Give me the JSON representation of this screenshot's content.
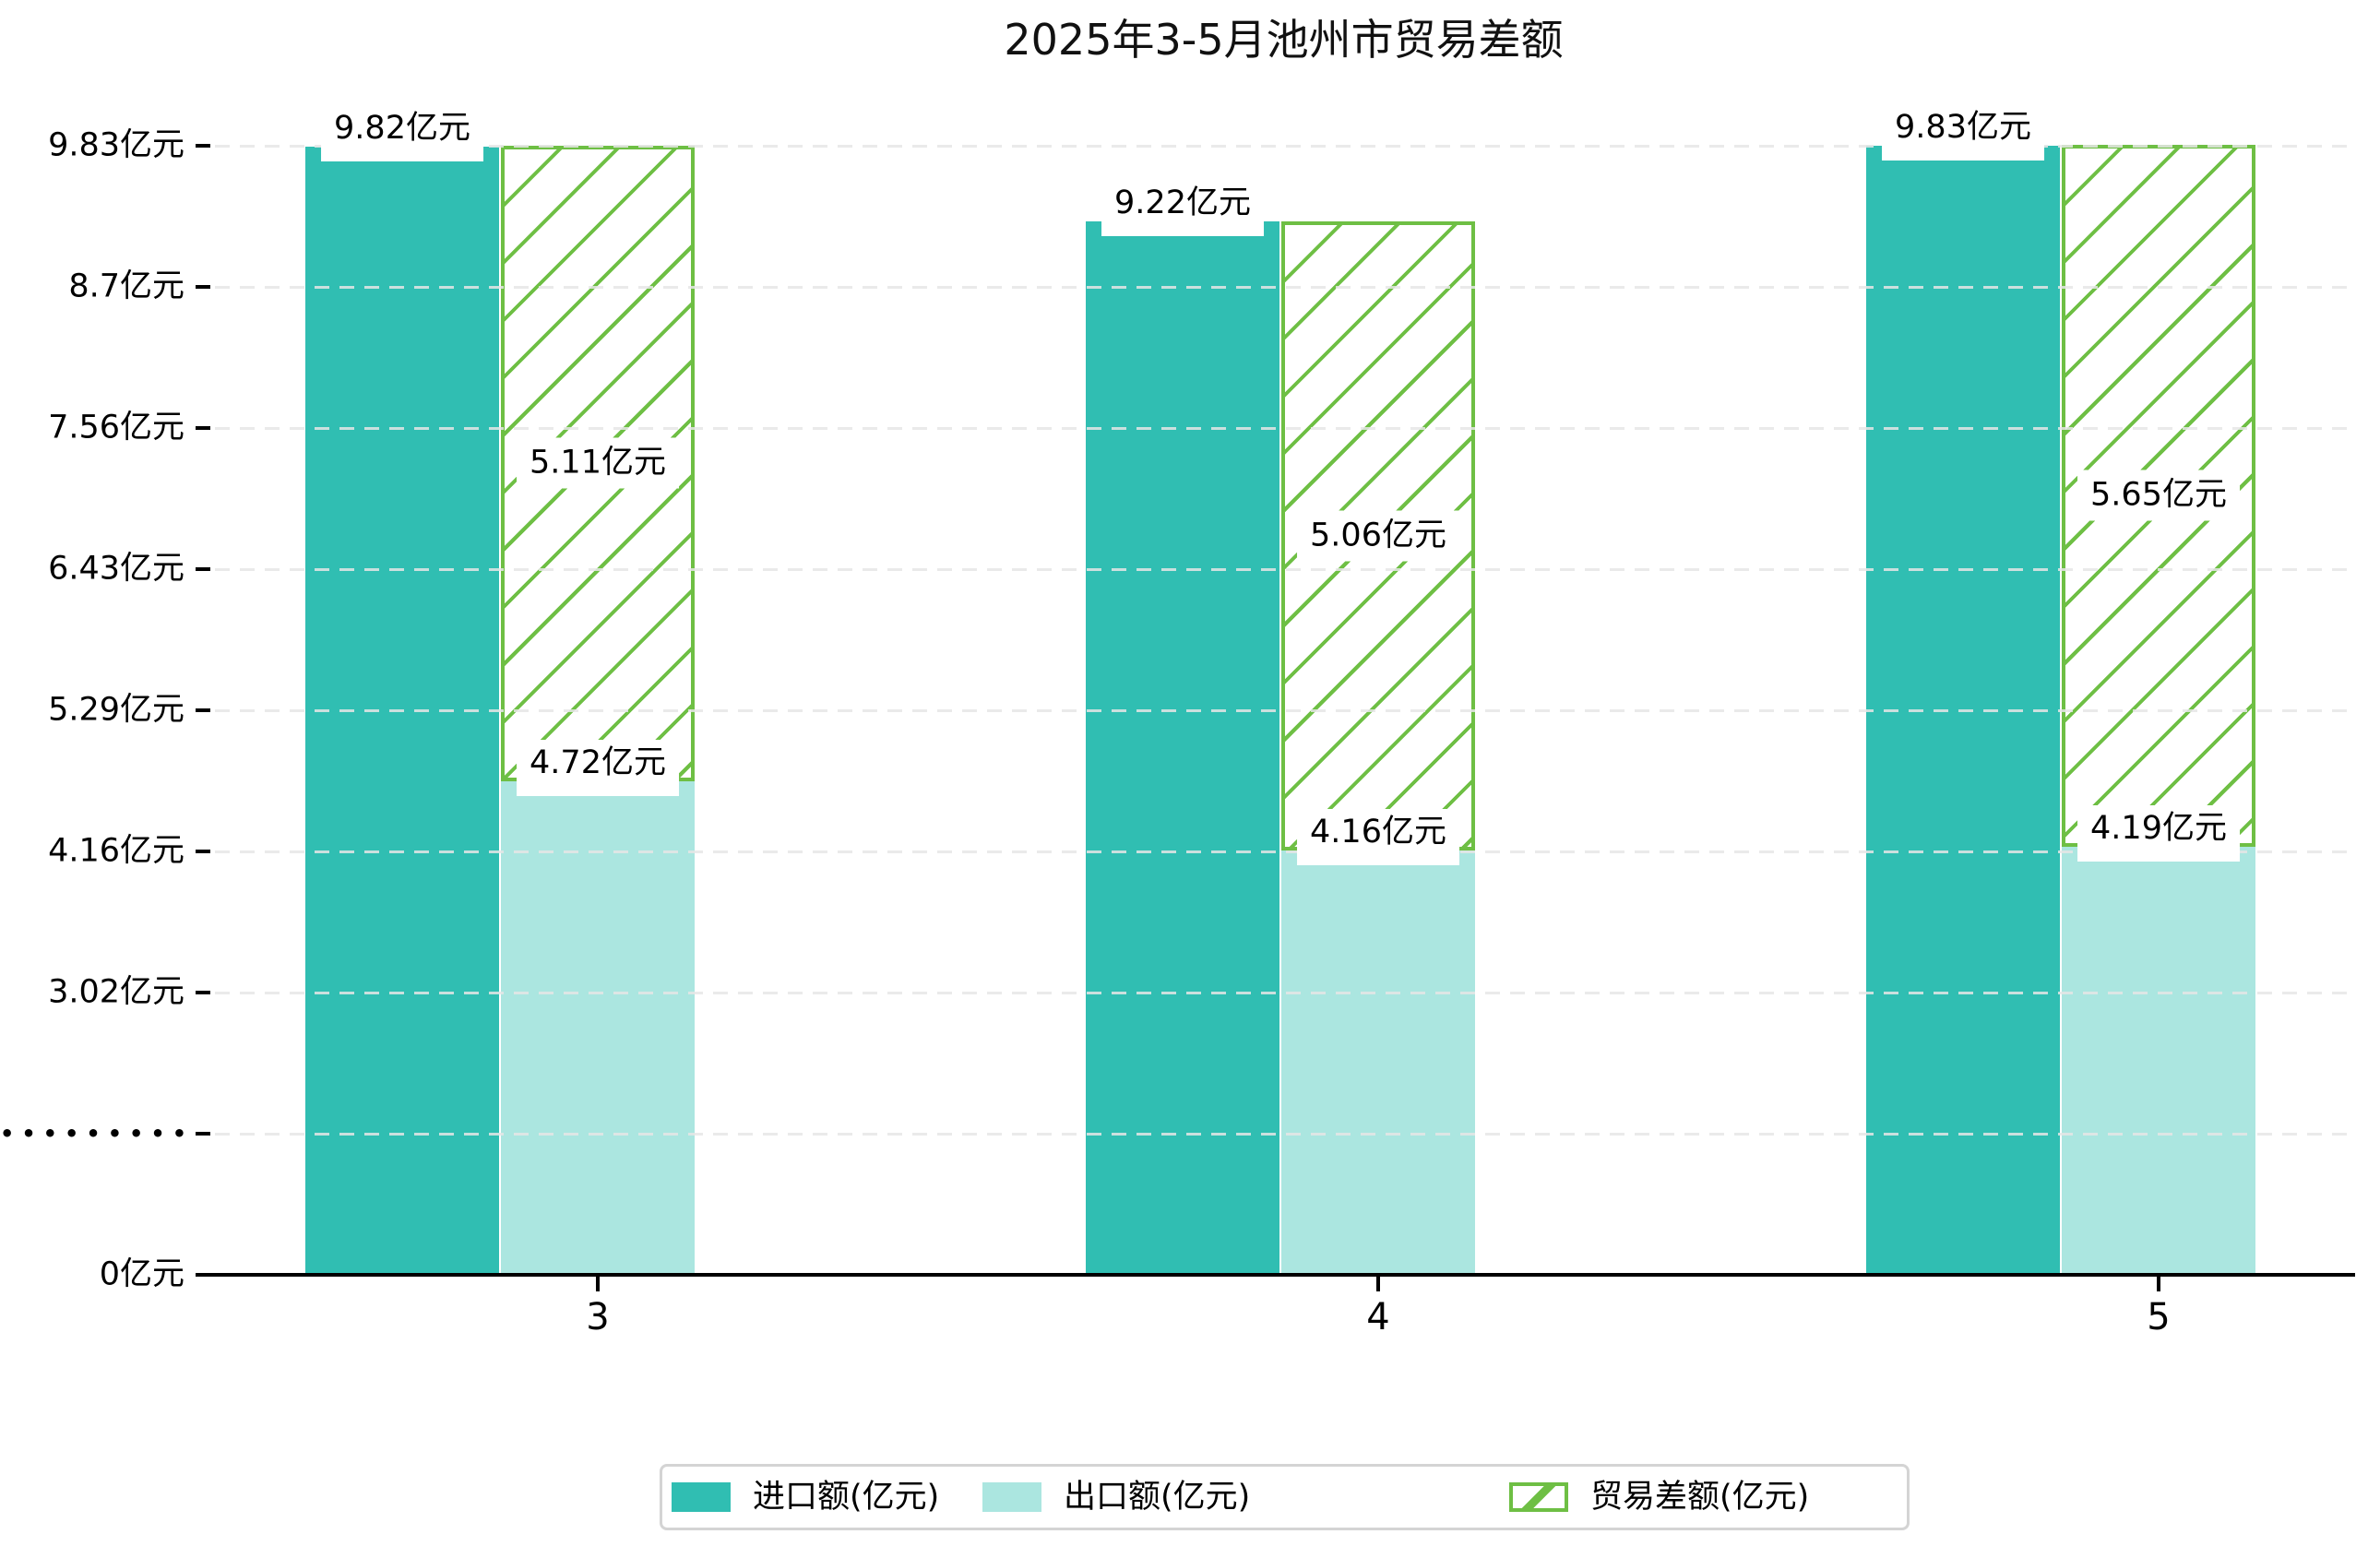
{
  "title": "2025年3-5月池州市贸易差额",
  "colors": {
    "import": "#30beb2",
    "export": "#abe6e0",
    "trade_balance": "#6ebf44",
    "grid": "#e8e8e8",
    "axis": "#000000"
  },
  "y_axis": {
    "tick_labels": [
      "9.83亿元",
      "8.7亿元",
      "7.56亿元",
      "6.43亿元",
      "5.29亿元",
      "4.16亿元",
      "3.02亿元",
      "•••••••••",
      "0亿元"
    ],
    "tick_values": [
      9.83,
      8.7,
      7.56,
      6.43,
      5.29,
      4.16,
      3.02,
      null,
      0
    ],
    "break_label_index": 7,
    "unit": "亿元"
  },
  "x_axis": {
    "tick_labels": [
      "3",
      "4",
      "5"
    ]
  },
  "legend": {
    "items": [
      {
        "label": "进口额(亿元)",
        "swatch": "import"
      },
      {
        "label": "出口额(亿元)",
        "swatch": "export"
      },
      {
        "label": "贸易差额(亿元)",
        "swatch": "trade_balance"
      }
    ]
  },
  "chart_data": {
    "type": "bar",
    "title": "2025年3-5月池州市贸易差额",
    "categories": [
      "3",
      "4",
      "5"
    ],
    "series": [
      {
        "name": "进口额(亿元)",
        "role": "import",
        "values": [
          9.82,
          9.22,
          9.83
        ],
        "labels": [
          "9.82亿元",
          "9.22亿元",
          "9.83亿元"
        ]
      },
      {
        "name": "出口额(亿元)",
        "role": "export",
        "values": [
          4.72,
          4.16,
          4.19
        ],
        "labels": [
          "4.72亿元",
          "4.16亿元",
          "4.19亿元"
        ]
      },
      {
        "name": "贸易差额(亿元)",
        "role": "trade_balance",
        "style": "hatched",
        "stacked_on": "出口额(亿元)",
        "values": [
          5.11,
          5.06,
          5.65
        ],
        "labels": [
          "5.11亿元",
          "5.06亿元",
          "5.65亿元"
        ]
      }
    ],
    "unit": "亿元",
    "y_ticks": [
      0,
      3.02,
      4.16,
      5.29,
      6.43,
      7.56,
      8.7,
      9.83
    ],
    "axis_break_between": [
      0,
      3.02
    ],
    "grid": "horizontal dashed, drawn over bars",
    "legend_position": "bottom center"
  }
}
